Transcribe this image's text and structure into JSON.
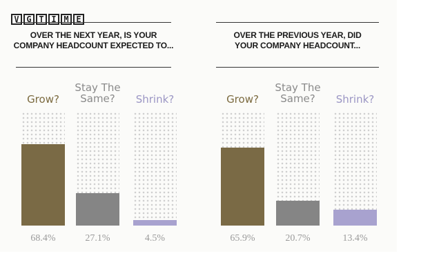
{
  "logo": {
    "letters": [
      "V",
      "G",
      "T",
      "I",
      "M",
      "E"
    ]
  },
  "colors": {
    "grow": "#7a6a45",
    "stay": "#858585",
    "shrink": "#a8a2cf",
    "label_grow": "#7b6a3f",
    "label_stay": "#8a8a8a",
    "label_shrink": "#9b96c4"
  },
  "chart_data": [
    {
      "type": "bar",
      "title": "OVER THE NEXT YEAR, IS YOUR COMPANY HEADCOUNT EXPECTED TO...",
      "title_line1": "OVER THE NEXT YEAR, IS YOUR",
      "title_line2": "COMPANY HEADCOUNT EXPECTED TO...",
      "categories": [
        "Grow?",
        "Stay The Same?",
        "Shrink?"
      ],
      "category_lines": [
        [
          "Grow?"
        ],
        [
          "Stay The",
          "Same?"
        ],
        [
          "Shrink?"
        ]
      ],
      "values": [
        68.4,
        27.1,
        4.5
      ],
      "value_labels": [
        "68.4%",
        "27.1%",
        "4.5%"
      ],
      "ylim": [
        0,
        100
      ]
    },
    {
      "type": "bar",
      "title": "OVER THE PREVIOUS YEAR, DID YOUR COMPANY HEADCOUNT...",
      "title_line1": "OVER THE PREVIOUS YEAR, DID",
      "title_line2": "YOUR COMPANY HEADCOUNT...",
      "categories": [
        "Grow?",
        "Stay The Same?",
        "Shrink?"
      ],
      "category_lines": [
        [
          "Grow?"
        ],
        [
          "Stay The",
          "Same?"
        ],
        [
          "Shrink?"
        ]
      ],
      "values": [
        65.9,
        20.7,
        13.4
      ],
      "value_labels": [
        "65.9%",
        "20.7%",
        "13.4%"
      ],
      "ylim": [
        0,
        100
      ]
    }
  ]
}
